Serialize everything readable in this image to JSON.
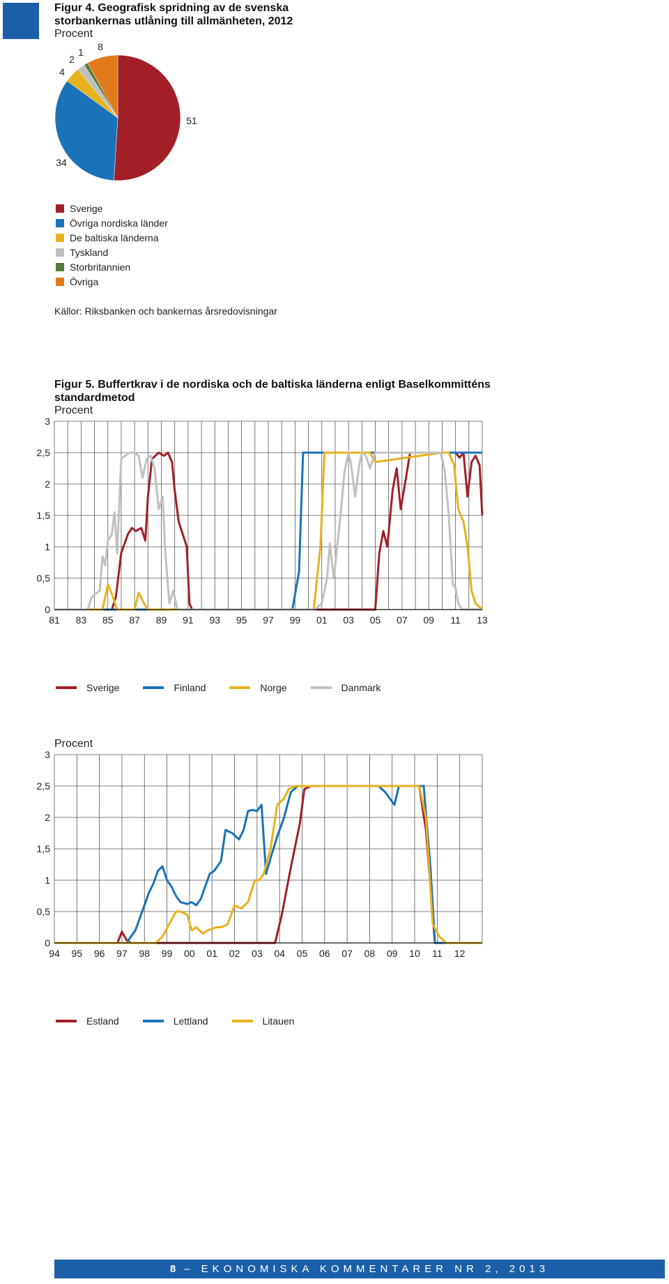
{
  "figure4": {
    "title_line1": "Figur 4. Geografisk spridning av de svenska",
    "title_line2": "storbankernas utlåning till allmänheten, 2012",
    "unit": "Procent",
    "source": "Källor: Riksbanken och bankernas årsredovisningar",
    "chart_data": {
      "type": "pie",
      "categories": [
        "Sverige",
        "Övriga nordiska länder",
        "De baltiska länderna",
        "Tyskland",
        "Storbritannien",
        "Övriga"
      ],
      "values": [
        51,
        34,
        4,
        2,
        1,
        8
      ],
      "labels": [
        "51",
        "34",
        "4",
        "2",
        "1",
        "8"
      ],
      "colors": [
        "#a31f28",
        "#1a72b8",
        "#e8b21c",
        "#c0c0c0",
        "#5b7a3a",
        "#e07a1c"
      ]
    }
  },
  "figure5": {
    "title_line1": "Figur 5. Buffertkrav i de nordiska och de baltiska länderna enligt Baselkommitténs",
    "title_line2": "standardmetod",
    "unit": "Procent",
    "chart_data": [
      {
        "type": "line",
        "x_range": [
          1981,
          2013
        ],
        "x_tick_values": [
          1981,
          1983,
          1985,
          1987,
          1989,
          1991,
          1993,
          1995,
          1997,
          1999,
          2001,
          2003,
          2005,
          2007,
          2009,
          2011,
          2013
        ],
        "x_tick_labels": [
          "81",
          "83",
          "85",
          "87",
          "89",
          "91",
          "93",
          "95",
          "97",
          "99",
          "01",
          "03",
          "05",
          "07",
          "09",
          "11",
          "13"
        ],
        "y_range": [
          0,
          3
        ],
        "y_tick_values": [
          0,
          0.5,
          1,
          1.5,
          2,
          2.5,
          3
        ],
        "y_tick_labels": [
          "0",
          "0,5",
          "1",
          "1,5",
          "2",
          "2,5",
          "3"
        ],
        "grid": true,
        "series": [
          {
            "name": "Sverige",
            "color": "#a31f28",
            "x": [
              1981,
              1985.0,
              1985.3,
              1985.6,
              1986.0,
              1986.5,
              1986.8,
              1987.1,
              1987.5,
              1987.8,
              1988.0,
              1988.3,
              1988.8,
              1989.2,
              1989.5,
              1989.8,
              1990.0,
              1990.3,
              1990.6,
              1990.9,
              1991.1,
              1991.3,
              1995,
              1999,
              2004.0,
              2005.0,
              2005.3,
              2005.6,
              2005.9,
              2006.3,
              2006.6,
              2006.9,
              2007.3,
              2007.6,
              2008.0,
              2011.0,
              2011.3,
              2011.6,
              2011.9,
              2012.2,
              2012.5,
              2012.8,
              2013.0
            ],
            "y": [
              0,
              0,
              0,
              0.2,
              0.9,
              1.2,
              1.3,
              1.25,
              1.3,
              1.1,
              1.8,
              2.4,
              2.5,
              2.45,
              2.5,
              2.35,
              1.9,
              1.4,
              1.2,
              1.0,
              0.1,
              0,
              0,
              0,
              0,
              0,
              0.9,
              1.25,
              1.0,
              1.9,
              2.25,
              1.6,
              2.1,
              2.5,
              2.5,
              2.5,
              2.42,
              2.5,
              1.8,
              2.35,
              2.45,
              2.3,
              1.5
            ]
          },
          {
            "name": "Finland",
            "color": "#1a72b8",
            "x": [
              1981,
              1995,
              1998.8,
              1999.3,
              1999.6,
              2000.2,
              2004,
              2005,
              2006,
              2013
            ],
            "y": [
              0,
              0,
              0,
              0.6,
              2.5,
              2.5,
              2.5,
              2.5,
              2.5,
              2.5
            ]
          },
          {
            "name": "Norge",
            "color": "#e8b21c",
            "x": [
              1981,
              1984.2,
              1984.6,
              1985.0,
              1985.3,
              1985.7,
              1987.0,
              1987.3,
              1987.7,
              1988.0,
              1989.5,
              2000.4,
              2000.9,
              2001.2,
              2004.0,
              2004.6,
              2005.0,
              2010.0,
              2010.5,
              2010.9,
              2011.2,
              2011.6,
              2011.9,
              2012.2,
              2012.5,
              2013.0
            ],
            "y": [
              0,
              0,
              0,
              0.4,
              0.25,
              0,
              0,
              0.27,
              0.1,
              0,
              0,
              0,
              1.0,
              2.5,
              2.5,
              2.5,
              2.35,
              2.5,
              2.5,
              2.3,
              1.6,
              1.4,
              1.0,
              0.3,
              0.1,
              0
            ]
          },
          {
            "name": "Danmark",
            "color": "#c0c0c0",
            "x": [
              1981,
              1983.5,
              1983.8,
              1984.1,
              1984.4,
              1984.6,
              1984.8,
              1985.0,
              1985.3,
              1985.5,
              1985.7,
              1986.0,
              1986.3,
              1986.6,
              1987.0,
              1987.3,
              1987.6,
              1987.9,
              1988.2,
              1988.5,
              1988.8,
              1989.1,
              1989.3,
              1989.6,
              1989.9,
              1990.2,
              1995,
              2000.5,
              2001.0,
              2001.4,
              2001.6,
              2001.9,
              2002.2,
              2002.4,
              2002.7,
              2003.0,
              2003.2,
              2003.5,
              2003.8,
              2004.0,
              2004.3,
              2004.6,
              2005.0,
              2005.3,
              2005.6,
              2006.0,
              2009.0,
              2009.9,
              2010.2,
              2010.5,
              2010.8,
              2011.0,
              2011.2,
              2011.5,
              2011.8,
              2013.0
            ],
            "y": [
              0,
              0,
              0.2,
              0.25,
              0.3,
              0.85,
              0.7,
              1.1,
              1.2,
              1.55,
              0.9,
              2.4,
              2.45,
              2.5,
              2.5,
              2.45,
              2.1,
              2.4,
              2.45,
              2.25,
              1.6,
              1.8,
              0.9,
              0.1,
              0.3,
              0,
              0,
              0,
              0.1,
              0.5,
              1.05,
              0.5,
              1.1,
              1.5,
              2.2,
              2.5,
              2.3,
              1.8,
              2.3,
              2.5,
              2.45,
              2.25,
              2.5,
              2.5,
              2.5,
              2.5,
              2.5,
              2.5,
              2.2,
              1.5,
              0.4,
              0.35,
              0.1,
              0,
              0,
              0
            ]
          }
        ]
      },
      {
        "type": "line",
        "x_range": [
          1994,
          2013
        ],
        "x_tick_values": [
          1994,
          1995,
          1996,
          1997,
          1998,
          1999,
          2000,
          2001,
          2002,
          2003,
          2004,
          2005,
          2006,
          2007,
          2008,
          2009,
          2010,
          2011,
          2012
        ],
        "x_tick_labels": [
          "94",
          "95",
          "96",
          "97",
          "98",
          "99",
          "00",
          "01",
          "02",
          "03",
          "04",
          "05",
          "06",
          "07",
          "08",
          "09",
          "10",
          "11",
          "12"
        ],
        "y_range": [
          0,
          3
        ],
        "y_tick_values": [
          0,
          0.5,
          1,
          1.5,
          2,
          2.5,
          3
        ],
        "y_tick_labels": [
          "0",
          "0,5",
          "1",
          "1,5",
          "2",
          "2,5",
          "3"
        ],
        "grid": true,
        "series": [
          {
            "name": "Estland",
            "color": "#a31f28",
            "x": [
              1994,
              1996.8,
              1997.0,
              1997.2,
              1997.4,
              1997.6,
              2003.8,
              2004.1,
              2004.5,
              2004.9,
              2005.1,
              2005.4,
              2010.2,
              2010.5,
              2010.9,
              2013.0
            ],
            "y": [
              0,
              0,
              0.18,
              0.05,
              0,
              0,
              0,
              0.45,
              1.2,
              1.9,
              2.45,
              2.5,
              2.5,
              1.8,
              0,
              0
            ]
          },
          {
            "name": "Lettland",
            "color": "#1a72b8",
            "x": [
              1994,
              1997.2,
              1997.6,
              1997.9,
              1998.2,
              1998.4,
              1998.6,
              1998.8,
              1999.0,
              1999.2,
              1999.4,
              1999.6,
              1999.9,
              2000.1,
              2000.3,
              2000.5,
              2000.7,
              2000.9,
              2001.1,
              2001.4,
              2001.6,
              2001.9,
              2002.2,
              2002.4,
              2002.6,
              2002.8,
              2003.0,
              2003.2,
              2003.4,
              2003.6,
              2003.9,
              2004.2,
              2004.5,
              2004.8,
              2005.1,
              2005.4,
              2008.4,
              2008.7,
              2008.9,
              2009.1,
              2009.3,
              2010.0,
              2010.4,
              2010.7,
              2010.9,
              2013.0
            ],
            "y": [
              0,
              0,
              0.2,
              0.5,
              0.8,
              0.95,
              1.15,
              1.22,
              1.0,
              0.9,
              0.75,
              0.65,
              0.62,
              0.65,
              0.6,
              0.7,
              0.9,
              1.1,
              1.15,
              1.3,
              1.8,
              1.75,
              1.65,
              1.8,
              2.1,
              2.12,
              2.1,
              2.2,
              1.1,
              1.35,
              1.7,
              2.0,
              2.4,
              2.5,
              2.5,
              2.5,
              2.5,
              2.4,
              2.3,
              2.2,
              2.5,
              2.5,
              2.5,
              1.2,
              0,
              0
            ]
          },
          {
            "name": "Litauen",
            "color": "#e8b21c",
            "x": [
              1994,
              1998.5,
              1998.8,
              1999.1,
              1999.4,
              1999.6,
              1999.9,
              2000.1,
              2000.3,
              2000.6,
              2000.8,
              2001.2,
              2001.4,
              2001.7,
              2002.0,
              2002.3,
              2002.6,
              2002.9,
              2003.1,
              2003.3,
              2003.6,
              2003.9,
              2004.2,
              2004.4,
              2004.7,
              2005.0,
              2010.2,
              2010.5,
              2010.8,
              2011.1,
              2011.4,
              2013.0
            ],
            "y": [
              0,
              0,
              0.1,
              0.3,
              0.5,
              0.5,
              0.45,
              0.2,
              0.25,
              0.15,
              0.2,
              0.25,
              0.25,
              0.3,
              0.6,
              0.55,
              0.65,
              1.0,
              1.0,
              1.1,
              1.5,
              2.2,
              2.3,
              2.45,
              2.5,
              2.5,
              2.5,
              2.0,
              0.3,
              0.1,
              0,
              0
            ]
          }
        ]
      }
    ]
  },
  "footer": {
    "page_number": "8",
    "text": "– EKONOMISKA KOMMENTARER NR 2, 2013"
  }
}
